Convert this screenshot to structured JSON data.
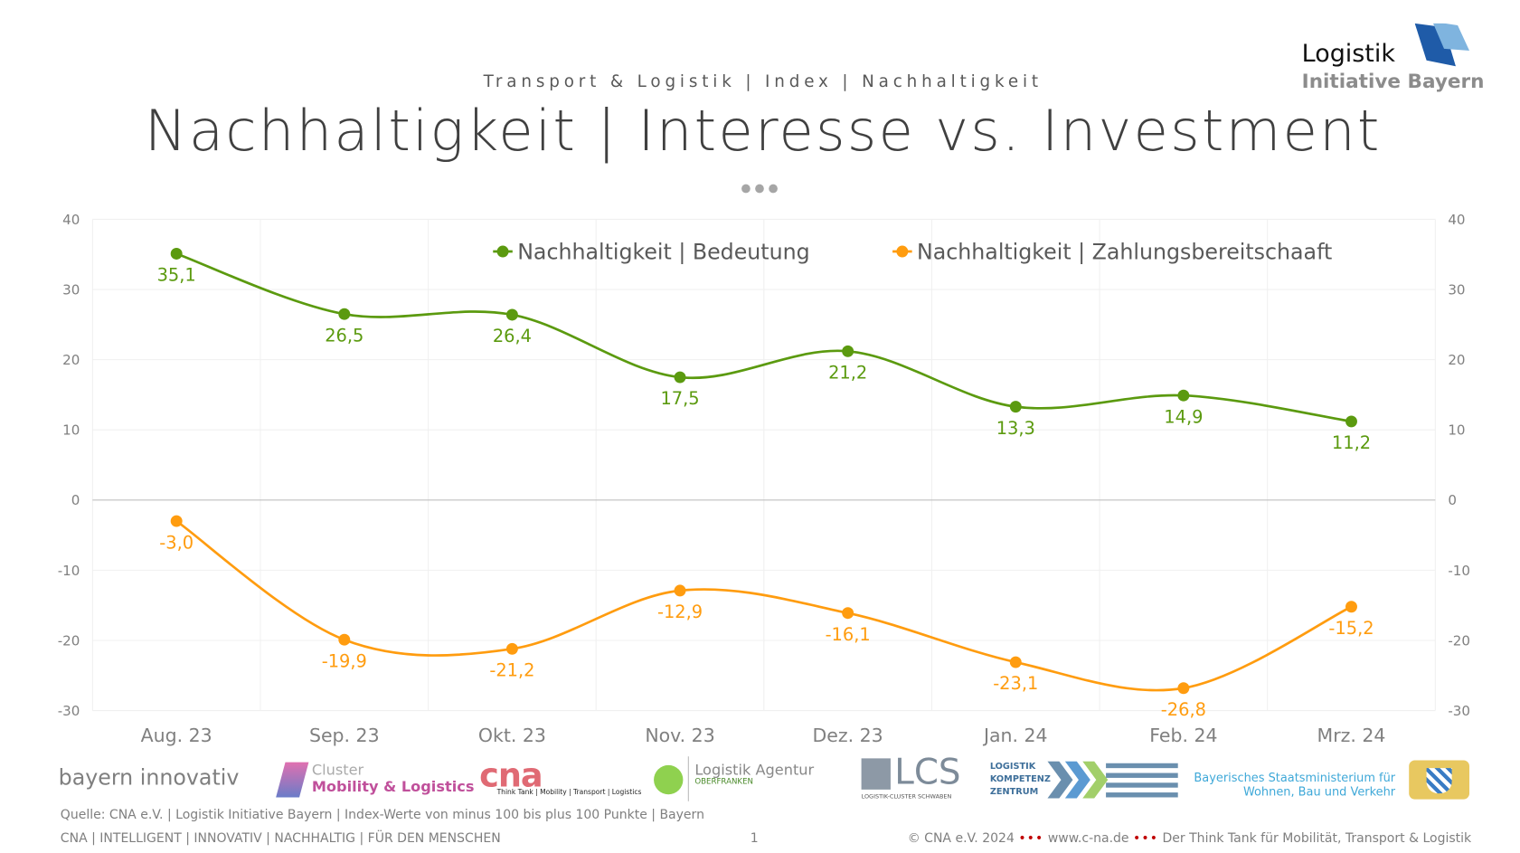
{
  "header": {
    "kicker": "Transport & Logistik | Index | Nachhaltigkeit",
    "title": "Nachhaltigkeit | Interesse vs. Investment"
  },
  "brand_logo": {
    "line1": "Logistik",
    "line2": "Initiative Bayern"
  },
  "chart_data": {
    "type": "line",
    "title": "Nachhaltigkeit | Interesse vs. Investment",
    "categories": [
      "Aug. 23",
      "Sep. 23",
      "Okt. 23",
      "Nov. 23",
      "Dez. 23",
      "Jan. 24",
      "Feb. 24",
      "Mrz. 24"
    ],
    "series": [
      {
        "name": "Nachhaltigkeit | Bedeutung",
        "color": "#5b9a0f",
        "values": [
          35.1,
          26.5,
          26.4,
          17.5,
          21.2,
          13.3,
          14.9,
          11.2
        ],
        "labels": [
          "35,1",
          "26,5",
          "26,4",
          "17,5",
          "21,2",
          "13,3",
          "14,9",
          "11,2"
        ]
      },
      {
        "name": "Nachhaltigkeit | Zahlungsbereitschaaft",
        "color": "#ff9c0f",
        "values": [
          -3.0,
          -19.9,
          -21.2,
          -12.9,
          -16.1,
          -23.1,
          -26.8,
          -15.2
        ],
        "labels": [
          "-3,0",
          "-19,9",
          "-21,2",
          "-12,9",
          "-16,1",
          "-23,1",
          "-26,8",
          "-15,2"
        ]
      }
    ],
    "ylim": [
      -30,
      40
    ],
    "yticks": [
      "40",
      "30",
      "20",
      "10",
      "0",
      "-10",
      "-20",
      "-30"
    ],
    "legend": "top",
    "grid": true
  },
  "footer": {
    "logos": [
      "bayern innovativ",
      "Cluster",
      "Mobility & Logistics",
      "cna",
      "Think Tank | Mobility | Transport | Logistics",
      "Logistik Agentur",
      "OBERFRANKEN",
      "LCS",
      "LOGISTIK-CLUSTER SCHWABEN",
      "LOGISTIK",
      "KOMPETENZ",
      "ZENTRUM",
      "Bayerisches Staatsministerium für",
      "Wohnen, Bau und Verkehr"
    ],
    "source": "Quelle: CNA e.V. | Logistik Initiative Bayern | Index-Werte von minus 100 bis plus 100 Punkte | Bayern",
    "tagline": "CNA | INTELLIGENT | INNOVATIV | NACHHALTIG | FÜR DEN MENSCHEN",
    "page": "1",
    "copyright": "© CNA e.V. 2024",
    "url": "www.c-na.de",
    "claim": "Der Think Tank für Mobilität, Transport & Logistik",
    "sep": "•••"
  }
}
